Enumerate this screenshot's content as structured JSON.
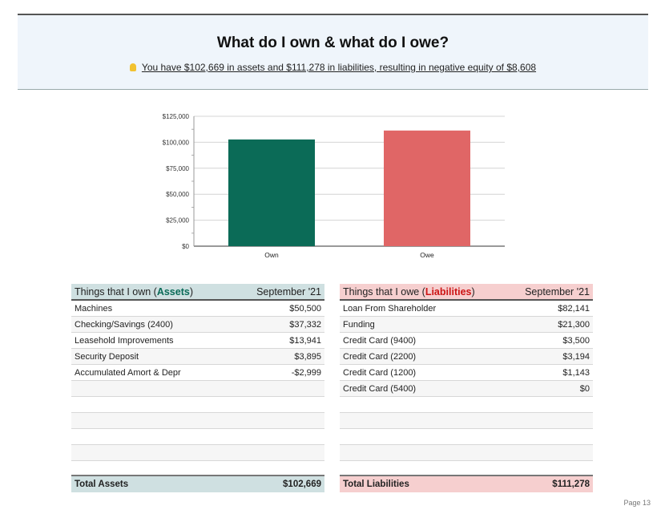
{
  "header": {
    "title": "What do I own & what do I owe?",
    "summary": "You have $102,669 in assets and $111,278 in liabilities, resulting in negative equity of $8,608",
    "icon": "lightbulb-icon"
  },
  "chart_data": {
    "type": "bar",
    "categories": [
      "Own",
      "Owe"
    ],
    "values": [
      102669,
      111278
    ],
    "colors": [
      "#0b6b57",
      "#e06666"
    ],
    "ylim": [
      0,
      125000
    ],
    "yticks": [
      "$0",
      "$25,000",
      "$50,000",
      "$75,000",
      "$100,000",
      "$125,000"
    ],
    "grid": true
  },
  "assets": {
    "title_prefix": "Things that I own (",
    "title_highlight": "Assets",
    "title_suffix": ")",
    "period": "September '21",
    "rows": [
      {
        "label": "Machines",
        "value": "$50,500"
      },
      {
        "label": "Checking/Savings (2400)",
        "value": "$37,332"
      },
      {
        "label": "Leasehold Improvements",
        "value": "$13,941"
      },
      {
        "label": "Security Deposit",
        "value": "$3,895"
      },
      {
        "label": "Accumulated Amort & Depr",
        "value": "-$2,999"
      }
    ],
    "total_label": "Total Assets",
    "total_value": "$102,669"
  },
  "liabilities": {
    "title_prefix": "Things that I owe (",
    "title_highlight": "Liabilities",
    "title_suffix": ")",
    "period": "September '21",
    "rows": [
      {
        "label": "Loan From Shareholder",
        "value": "$82,141"
      },
      {
        "label": "Funding",
        "value": "$21,300"
      },
      {
        "label": "Credit Card (9400)",
        "value": "$3,500"
      },
      {
        "label": "Credit Card (2200)",
        "value": "$3,194"
      },
      {
        "label": "Credit Card (1200)",
        "value": "$1,143"
      },
      {
        "label": "Credit Card (5400)",
        "value": "$0"
      }
    ],
    "total_label": "Total Liabilities",
    "total_value": "$111,278"
  },
  "page": {
    "number": "Page 13"
  }
}
